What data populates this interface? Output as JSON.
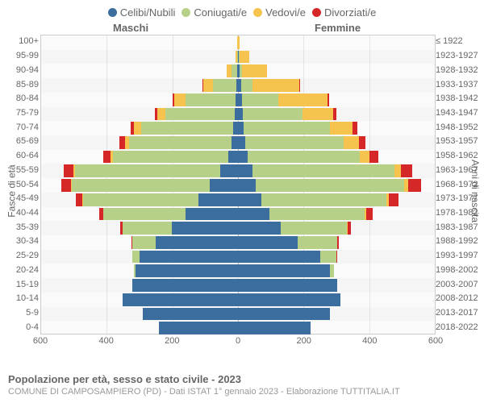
{
  "legend": [
    {
      "label": "Celibi/Nubili",
      "color": "#3b6e9e"
    },
    {
      "label": "Coniugati/e",
      "color": "#b6d087"
    },
    {
      "label": "Vedovi/e",
      "color": "#f6c34e"
    },
    {
      "label": "Divorziati/e",
      "color": "#d62728"
    }
  ],
  "chart": {
    "type": "population-pyramid",
    "gender_left": "Maschi",
    "gender_right": "Femmine",
    "axis_left_title": "Fasce di età",
    "axis_right_title": "Anni di nascita",
    "xlim": 600,
    "xticks": [
      600,
      400,
      200,
      0,
      200,
      400,
      600
    ],
    "background_color": "#fafafa",
    "grid_color": "#e5e5e5",
    "border_color": "#cccccc",
    "colors": {
      "single": "#3b6e9e",
      "married": "#b6d087",
      "widowed": "#f6c34e",
      "divorced": "#d62728"
    },
    "rows": [
      {
        "age": "100+",
        "birth": "≤ 1922",
        "m": {
          "s": 0,
          "c": 0,
          "w": 2,
          "d": 0
        },
        "f": {
          "s": 0,
          "c": 0,
          "w": 5,
          "d": 0
        }
      },
      {
        "age": "95-99",
        "birth": "1923-1927",
        "m": {
          "s": 0,
          "c": 3,
          "w": 4,
          "d": 0
        },
        "f": {
          "s": 3,
          "c": 2,
          "w": 30,
          "d": 0
        }
      },
      {
        "age": "90-94",
        "birth": "1928-1932",
        "m": {
          "s": 2,
          "c": 18,
          "w": 15,
          "d": 0
        },
        "f": {
          "s": 5,
          "c": 8,
          "w": 75,
          "d": 0
        }
      },
      {
        "age": "85-89",
        "birth": "1933-1937",
        "m": {
          "s": 5,
          "c": 70,
          "w": 30,
          "d": 2
        },
        "f": {
          "s": 10,
          "c": 35,
          "w": 140,
          "d": 3
        }
      },
      {
        "age": "80-84",
        "birth": "1938-1942",
        "m": {
          "s": 8,
          "c": 150,
          "w": 35,
          "d": 5
        },
        "f": {
          "s": 12,
          "c": 110,
          "w": 150,
          "d": 5
        }
      },
      {
        "age": "75-79",
        "birth": "1943-1947",
        "m": {
          "s": 10,
          "c": 210,
          "w": 25,
          "d": 8
        },
        "f": {
          "s": 15,
          "c": 180,
          "w": 95,
          "d": 10
        }
      },
      {
        "age": "70-74",
        "birth": "1948-1952",
        "m": {
          "s": 15,
          "c": 280,
          "w": 20,
          "d": 12
        },
        "f": {
          "s": 18,
          "c": 260,
          "w": 70,
          "d": 15
        }
      },
      {
        "age": "65-69",
        "birth": "1953-1957",
        "m": {
          "s": 20,
          "c": 310,
          "w": 12,
          "d": 18
        },
        "f": {
          "s": 22,
          "c": 300,
          "w": 45,
          "d": 20
        }
      },
      {
        "age": "60-64",
        "birth": "1958-1962",
        "m": {
          "s": 30,
          "c": 350,
          "w": 8,
          "d": 22
        },
        "f": {
          "s": 30,
          "c": 340,
          "w": 30,
          "d": 25
        }
      },
      {
        "age": "55-59",
        "birth": "1963-1967",
        "m": {
          "s": 55,
          "c": 440,
          "w": 5,
          "d": 30
        },
        "f": {
          "s": 45,
          "c": 430,
          "w": 20,
          "d": 35
        }
      },
      {
        "age": "50-54",
        "birth": "1968-1972",
        "m": {
          "s": 85,
          "c": 420,
          "w": 3,
          "d": 28
        },
        "f": {
          "s": 55,
          "c": 450,
          "w": 12,
          "d": 38
        }
      },
      {
        "age": "45-49",
        "birth": "1973-1977",
        "m": {
          "s": 120,
          "c": 350,
          "w": 2,
          "d": 20
        },
        "f": {
          "s": 70,
          "c": 380,
          "w": 8,
          "d": 30
        }
      },
      {
        "age": "40-44",
        "birth": "1978-1982",
        "m": {
          "s": 160,
          "c": 250,
          "w": 0,
          "d": 12
        },
        "f": {
          "s": 95,
          "c": 290,
          "w": 5,
          "d": 18
        }
      },
      {
        "age": "35-39",
        "birth": "1983-1987",
        "m": {
          "s": 200,
          "c": 150,
          "w": 0,
          "d": 8
        },
        "f": {
          "s": 130,
          "c": 200,
          "w": 2,
          "d": 10
        }
      },
      {
        "age": "30-34",
        "birth": "1988-1992",
        "m": {
          "s": 250,
          "c": 70,
          "w": 0,
          "d": 3
        },
        "f": {
          "s": 180,
          "c": 120,
          "w": 0,
          "d": 5
        }
      },
      {
        "age": "25-29",
        "birth": "1993-1997",
        "m": {
          "s": 300,
          "c": 20,
          "w": 0,
          "d": 0
        },
        "f": {
          "s": 250,
          "c": 50,
          "w": 0,
          "d": 2
        }
      },
      {
        "age": "20-24",
        "birth": "1998-2002",
        "m": {
          "s": 310,
          "c": 5,
          "w": 0,
          "d": 0
        },
        "f": {
          "s": 280,
          "c": 12,
          "w": 0,
          "d": 0
        }
      },
      {
        "age": "15-19",
        "birth": "2003-2007",
        "m": {
          "s": 320,
          "c": 0,
          "w": 0,
          "d": 0
        },
        "f": {
          "s": 300,
          "c": 0,
          "w": 0,
          "d": 0
        }
      },
      {
        "age": "10-14",
        "birth": "2008-2012",
        "m": {
          "s": 350,
          "c": 0,
          "w": 0,
          "d": 0
        },
        "f": {
          "s": 310,
          "c": 0,
          "w": 0,
          "d": 0
        }
      },
      {
        "age": "5-9",
        "birth": "2013-2017",
        "m": {
          "s": 290,
          "c": 0,
          "w": 0,
          "d": 0
        },
        "f": {
          "s": 280,
          "c": 0,
          "w": 0,
          "d": 0
        }
      },
      {
        "age": "0-4",
        "birth": "2018-2022",
        "m": {
          "s": 240,
          "c": 0,
          "w": 0,
          "d": 0
        },
        "f": {
          "s": 220,
          "c": 0,
          "w": 0,
          "d": 0
        }
      }
    ]
  },
  "footer": {
    "title": "Popolazione per età, sesso e stato civile - 2023",
    "subtitle": "COMUNE DI CAMPOSAMPIERO (PD) - Dati ISTAT 1° gennaio 2023 - Elaborazione TUTTITALIA.IT"
  }
}
